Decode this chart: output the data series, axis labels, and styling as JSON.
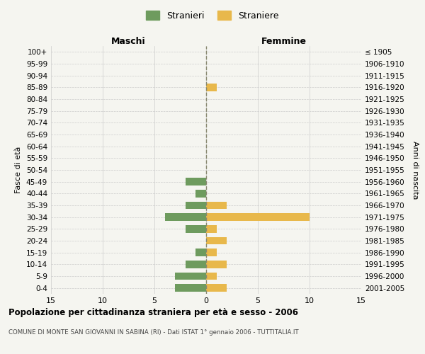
{
  "age_groups": [
    "100+",
    "95-99",
    "90-94",
    "85-89",
    "80-84",
    "75-79",
    "70-74",
    "65-69",
    "60-64",
    "55-59",
    "50-54",
    "45-49",
    "40-44",
    "35-39",
    "30-34",
    "25-29",
    "20-24",
    "15-19",
    "10-14",
    "5-9",
    "0-4"
  ],
  "birth_years": [
    "≤ 1905",
    "1906-1910",
    "1911-1915",
    "1916-1920",
    "1921-1925",
    "1926-1930",
    "1931-1935",
    "1936-1940",
    "1941-1945",
    "1946-1950",
    "1951-1955",
    "1956-1960",
    "1961-1965",
    "1966-1970",
    "1971-1975",
    "1976-1980",
    "1981-1985",
    "1986-1990",
    "1991-1995",
    "1996-2000",
    "2001-2005"
  ],
  "maschi": [
    0,
    0,
    0,
    0,
    0,
    0,
    0,
    0,
    0,
    0,
    0,
    2,
    1,
    2,
    4,
    2,
    0,
    1,
    2,
    3,
    3
  ],
  "femmine": [
    0,
    0,
    0,
    1,
    0,
    0,
    0,
    0,
    0,
    0,
    0,
    0,
    0,
    2,
    10,
    1,
    2,
    1,
    2,
    1,
    2
  ],
  "maschi_color": "#6e9b5e",
  "femmine_color": "#e8b84b",
  "background_color": "#f5f5f0",
  "grid_color": "#cccccc",
  "center_line_color": "#888870",
  "xlim": 15,
  "title": "Popolazione per cittadinanza straniera per età e sesso - 2006",
  "subtitle": "COMUNE DI MONTE SAN GIOVANNI IN SABINA (RI) - Dati ISTAT 1° gennaio 2006 - TUTTITALIA.IT",
  "ylabel_left": "Fasce di età",
  "ylabel_right": "Anni di nascita",
  "xlabel_left": "Maschi",
  "xlabel_right": "Femmine",
  "legend_maschi": "Stranieri",
  "legend_femmine": "Straniere"
}
